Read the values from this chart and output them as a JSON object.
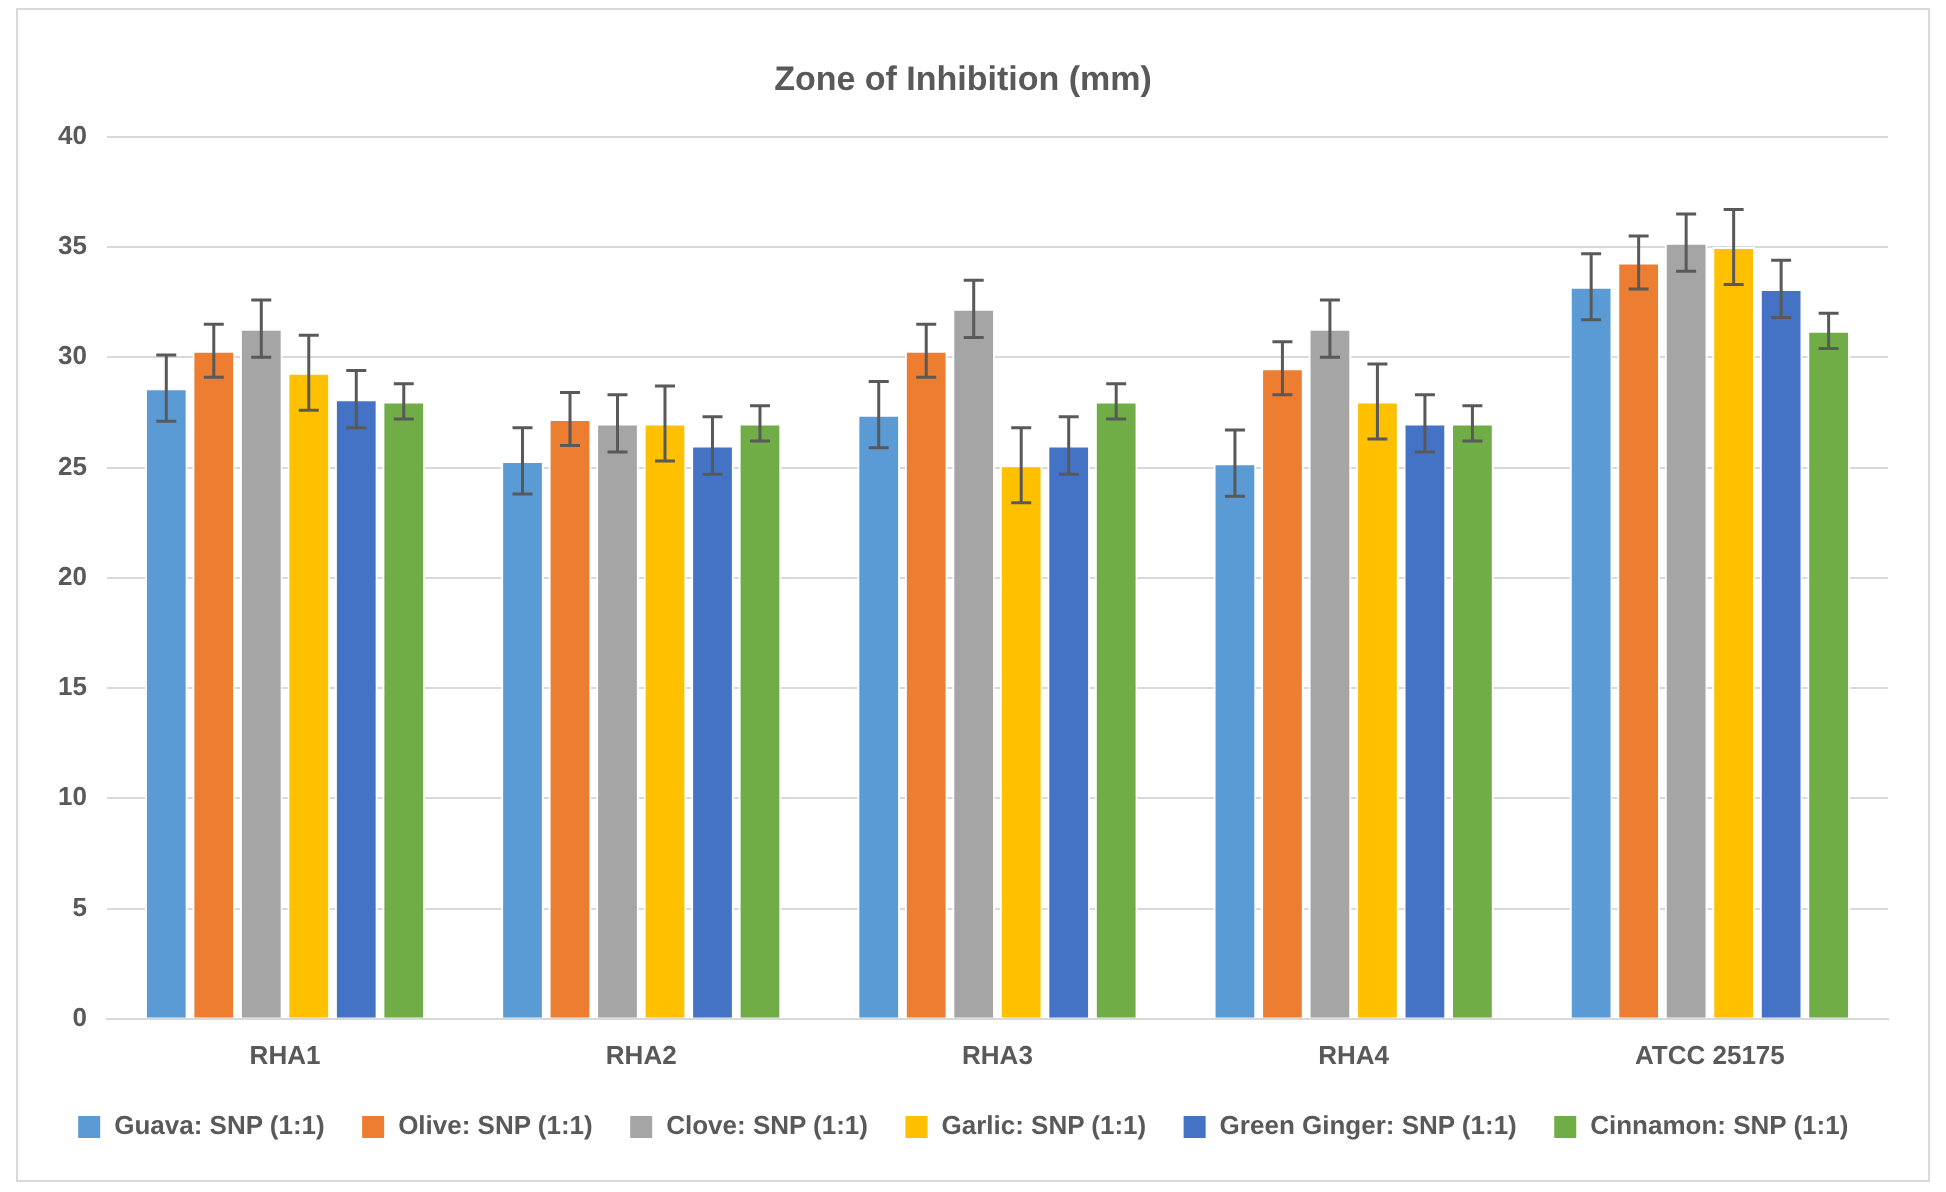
{
  "chart_data": {
    "type": "bar",
    "title": "Zone of Inhibition (mm)",
    "categories": [
      "RHA1",
      "RHA2",
      "RHA3",
      "RHA4",
      "ATCC 25175"
    ],
    "series": [
      {
        "name": "Guava: SNP (1:1)",
        "color": "#5b9bd5",
        "values": [
          28.6,
          25.3,
          27.4,
          25.2,
          33.2
        ],
        "errors": [
          1.5,
          1.5,
          1.5,
          1.5,
          1.5
        ]
      },
      {
        "name": "Olive: SNP (1:1)",
        "color": "#ed7d31",
        "values": [
          30.3,
          27.2,
          30.3,
          29.5,
          34.3
        ],
        "errors": [
          1.2,
          1.2,
          1.2,
          1.2,
          1.2
        ]
      },
      {
        "name": "Clove: SNP (1:1)",
        "color": "#a5a5a5",
        "values": [
          31.3,
          27.0,
          32.2,
          31.3,
          35.2
        ],
        "errors": [
          1.3,
          1.3,
          1.3,
          1.3,
          1.3
        ]
      },
      {
        "name": "Garlic: SNP (1:1)",
        "color": "#ffc000",
        "values": [
          29.3,
          27.0,
          25.1,
          28.0,
          35.0
        ],
        "errors": [
          1.7,
          1.7,
          1.7,
          1.7,
          1.7
        ]
      },
      {
        "name": "Green Ginger: SNP (1:1)",
        "color": "#4472c4",
        "values": [
          28.1,
          26.0,
          26.0,
          27.0,
          33.1
        ],
        "errors": [
          1.3,
          1.3,
          1.3,
          1.3,
          1.3
        ]
      },
      {
        "name": "Cinnamon: SNP (1:1)",
        "color": "#70ad47",
        "values": [
          28.0,
          27.0,
          28.0,
          27.0,
          31.2
        ],
        "errors": [
          0.8,
          0.8,
          0.8,
          0.8,
          0.8
        ]
      }
    ],
    "ylim": [
      0,
      40
    ],
    "yticks": [
      0,
      5,
      10,
      15,
      20,
      25,
      30,
      35,
      40
    ],
    "grid": "y",
    "legend": "bottom"
  }
}
